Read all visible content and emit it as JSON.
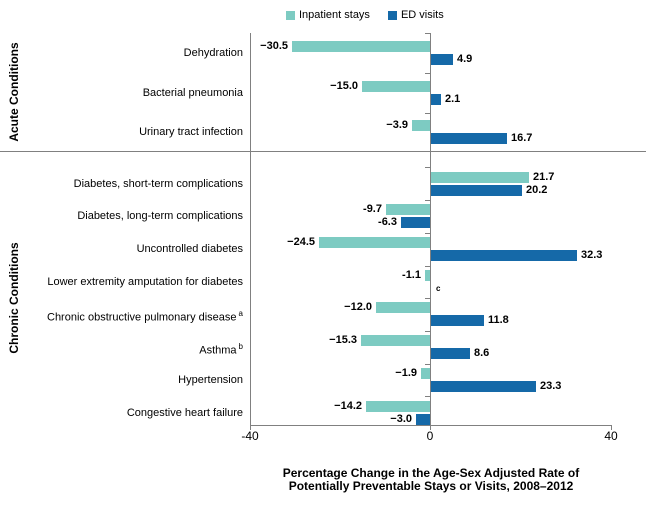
{
  "legend": {
    "items": [
      {
        "label": "Inpatient stays",
        "color": "#7DCBC2"
      },
      {
        "label": "ED visits",
        "color": "#1569A8"
      }
    ]
  },
  "x_axis": {
    "tick_labels": [
      "-40",
      "0",
      "40"
    ],
    "title_line1": "Percentage Change in the Age-Sex Adjusted Rate of",
    "title_line2": "Potentially Preventable Stays or Visits, 2008–2012"
  },
  "chart_data": {
    "type": "bar",
    "orientation": "horizontal",
    "xlim": [
      -40,
      40
    ],
    "x_ticks": [
      -40,
      0,
      40
    ],
    "grid": false,
    "legend_position": "top",
    "series_names": [
      "Inpatient stays",
      "ED visits"
    ],
    "colors": {
      "inpatient": "#7DCBC2",
      "ed": "#1569A8",
      "axis": "#808080"
    },
    "xlabel": "Percentage Change in the Age-Sex Adjusted Rate of Potentially Preventable Stays or Visits, 2008–2012",
    "sections": [
      {
        "name": "Acute Conditions",
        "rows": [
          {
            "category": "Dehydration",
            "sup": null,
            "inpatient": -30.5,
            "ed": 4.9,
            "inpatient_label": "−30.5",
            "ed_label": "4.9"
          },
          {
            "category": "Bacterial pneumonia",
            "sup": null,
            "inpatient": -15.0,
            "ed": 2.1,
            "inpatient_label": "−15.0",
            "ed_label": "2.1"
          },
          {
            "category": "Urinary tract infection",
            "sup": null,
            "inpatient": -3.9,
            "ed": 16.7,
            "inpatient_label": "−3.9",
            "ed_label": "16.7"
          }
        ]
      },
      {
        "name": "Chronic Conditions",
        "rows": [
          {
            "category": "Diabetes, short-term complications",
            "sup": null,
            "inpatient": 21.7,
            "ed": 20.2,
            "inpatient_label": "21.7",
            "ed_label": "20.2"
          },
          {
            "category": "Diabetes, long-term complications",
            "sup": null,
            "inpatient": -9.7,
            "ed": -6.3,
            "inpatient_label": "-9.7",
            "ed_label": "-6.3"
          },
          {
            "category": "Uncontrolled diabetes",
            "sup": null,
            "inpatient": -24.5,
            "ed": 32.3,
            "inpatient_label": "−24.5",
            "ed_label": "32.3"
          },
          {
            "category": "Lower extremity amputation for diabetes",
            "sup": null,
            "inpatient": -1.1,
            "ed": null,
            "inpatient_label": "-1.1",
            "ed_label": "c"
          },
          {
            "category": "Chronic obstructive pulmonary disease",
            "sup": "a",
            "inpatient": -12.0,
            "ed": 11.8,
            "inpatient_label": "−12.0",
            "ed_label": "11.8"
          },
          {
            "category": "Asthma",
            "sup": "b",
            "inpatient": -15.3,
            "ed": 8.6,
            "inpatient_label": "−15.3",
            "ed_label": "8.6"
          },
          {
            "category": "Hypertension",
            "sup": null,
            "inpatient": -1.9,
            "ed": 23.3,
            "inpatient_label": "−1.9",
            "ed_label": "23.3"
          },
          {
            "category": "Congestive heart failure",
            "sup": null,
            "inpatient": -14.2,
            "ed": -3.0,
            "inpatient_label": "−14.2",
            "ed_label": "−3.0"
          }
        ]
      }
    ]
  }
}
